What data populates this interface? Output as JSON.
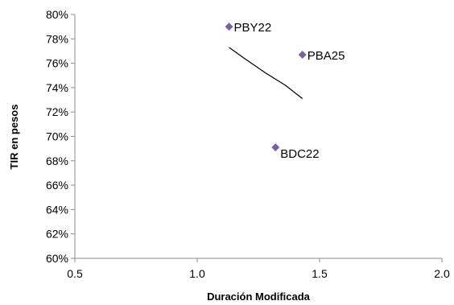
{
  "chart_data": {
    "type": "scatter",
    "title": "",
    "xlabel": "Duración Modificada",
    "ylabel": "TIR en pesos",
    "xlim": [
      0.5,
      2.0
    ],
    "ylim": [
      0.6,
      0.8
    ],
    "x_ticks": [
      "0.5",
      "1.0",
      "1.5",
      "2.0"
    ],
    "y_ticks": [
      "60%",
      "62%",
      "64%",
      "66%",
      "68%",
      "70%",
      "72%",
      "74%",
      "76%",
      "78%",
      "80%"
    ],
    "grid": false,
    "legend": "none",
    "series": [
      {
        "marker": "diamond",
        "color": "#7b5fa0",
        "points": [
          {
            "label": "PBY22",
            "x": 1.13,
            "y": 0.79
          },
          {
            "label": "PBA25",
            "x": 1.43,
            "y": 0.767
          },
          {
            "label": "BDC22",
            "x": 1.32,
            "y": 0.691
          }
        ]
      }
    ],
    "trendline": {
      "type": "curve",
      "color": "#000000",
      "x": [
        1.13,
        1.2,
        1.28,
        1.36,
        1.43
      ],
      "y": [
        0.773,
        0.763,
        0.752,
        0.742,
        0.731
      ]
    }
  }
}
